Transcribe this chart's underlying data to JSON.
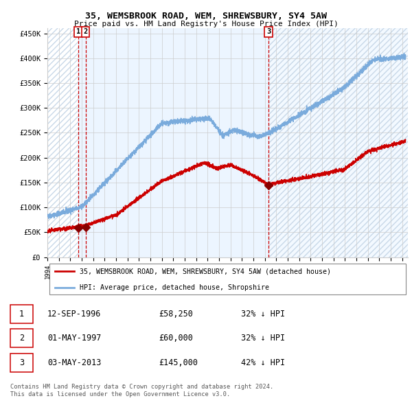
{
  "title": "35, WEMSBROOK ROAD, WEM, SHREWSBURY, SY4 5AW",
  "subtitle": "Price paid vs. HM Land Registry's House Price Index (HPI)",
  "legend_line1": "35, WEMSBROOK ROAD, WEM, SHREWSBURY, SY4 5AW (detached house)",
  "legend_line2": "HPI: Average price, detached house, Shropshire",
  "footnote1": "Contains HM Land Registry data © Crown copyright and database right 2024.",
  "footnote2": "This data is licensed under the Open Government Licence v3.0.",
  "sale_points": [
    {
      "label": "1",
      "date_num": 1996.7,
      "price": 58250
    },
    {
      "label": "2",
      "date_num": 1997.33,
      "price": 60000
    },
    {
      "label": "3",
      "date_num": 2013.33,
      "price": 145000
    }
  ],
  "sale_table": [
    {
      "num": "1",
      "date": "12-SEP-1996",
      "price": "£58,250",
      "hpi": "32% ↓ HPI"
    },
    {
      "num": "2",
      "date": "01-MAY-1997",
      "price": "£60,000",
      "hpi": "32% ↓ HPI"
    },
    {
      "num": "3",
      "date": "03-MAY-2013",
      "price": "£145,000",
      "hpi": "42% ↓ HPI"
    }
  ],
  "vline1_x": 1996.7,
  "vline2_x": 1997.33,
  "vline3_x": 2013.33,
  "xmin": 1994.0,
  "xmax": 2025.5,
  "ymin": 0,
  "ymax": 460000,
  "yticks": [
    0,
    50000,
    100000,
    150000,
    200000,
    250000,
    300000,
    350000,
    400000,
    450000
  ],
  "ytick_labels": [
    "£0",
    "£50K",
    "£100K",
    "£150K",
    "£200K",
    "£250K",
    "£300K",
    "£350K",
    "£400K",
    "£450K"
  ],
  "red_color": "#cc0000",
  "blue_color": "#7aabdc",
  "light_blue_bg": "#ddeeff",
  "hatch_color": "#c8d8e8",
  "grid_color": "#cccccc",
  "marker_color": "#880000",
  "vline_color": "#cc0000"
}
